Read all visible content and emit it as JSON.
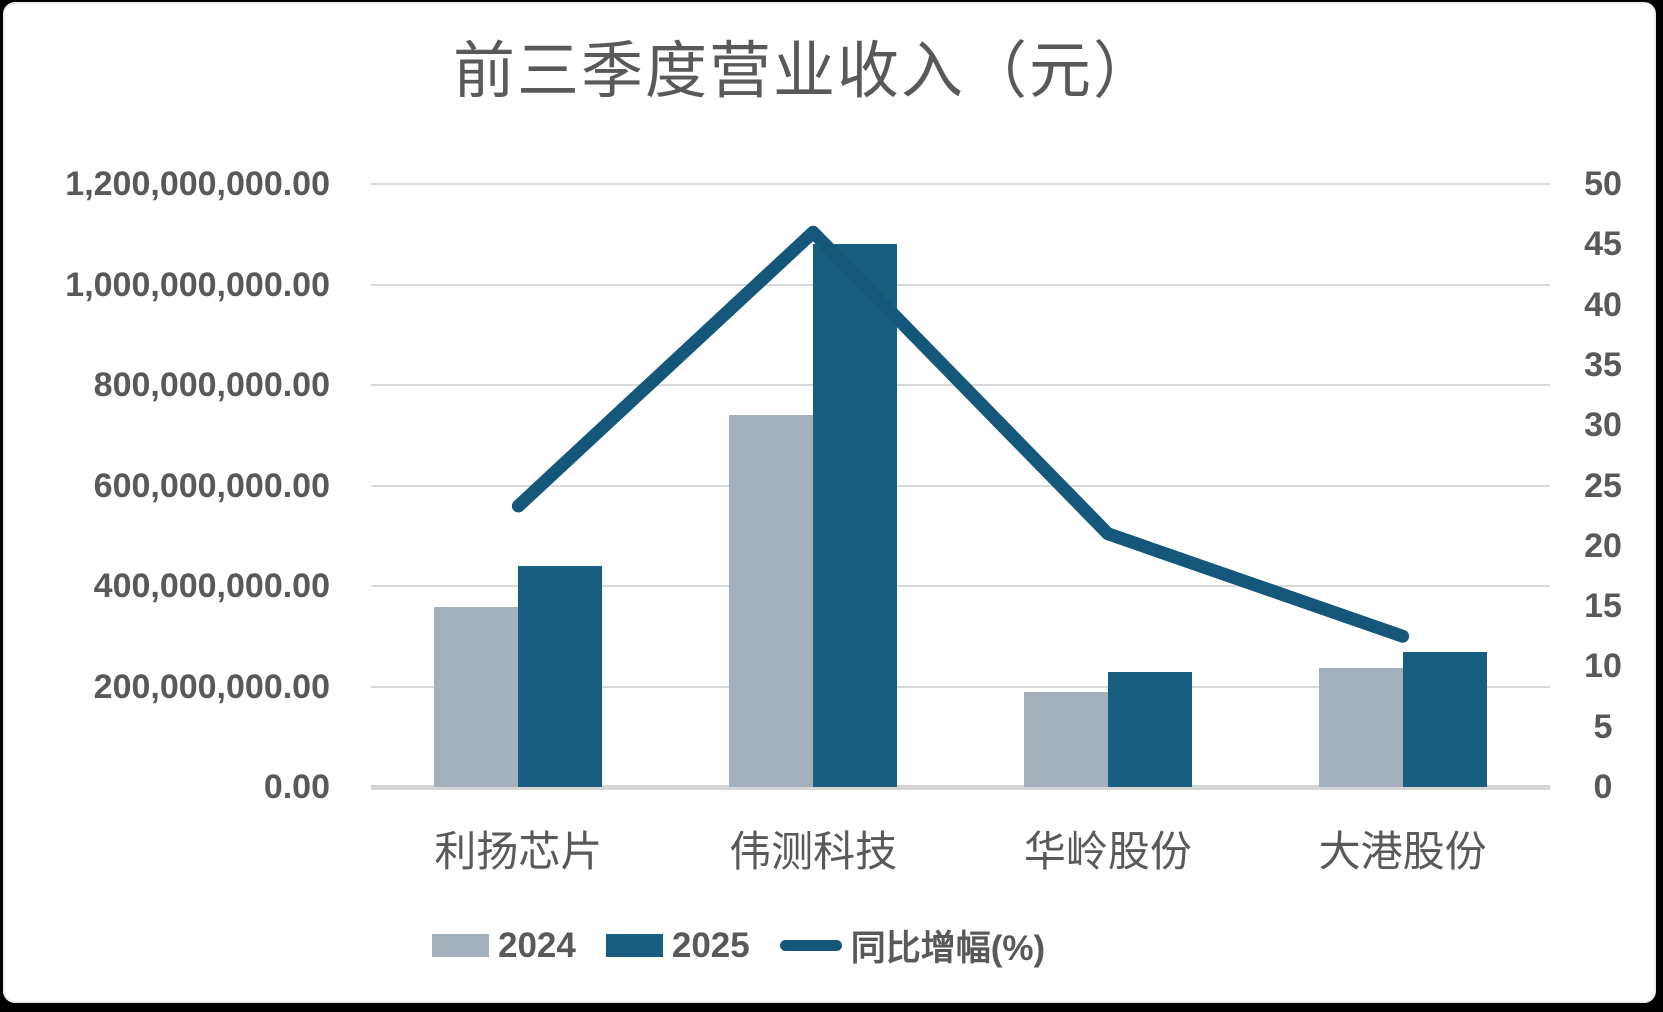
{
  "colors": {
    "bar_2024": "#a4b1bc",
    "bar_2025": "#175e80",
    "line": "#14577a",
    "grid": "#d9d9d9",
    "text": "#595959",
    "card_background": "#ffffff",
    "frame": "#000000"
  },
  "chart_data": {
    "type": "bar",
    "subtype": "grouped bars with overlay line on secondary axis",
    "title": "前三季度营业收入（元）",
    "categories": [
      "利扬芯片",
      "伟测科技",
      "华岭股份",
      "大港股份"
    ],
    "series": [
      {
        "name": "2024",
        "type": "bar",
        "axis": "left",
        "values": [
          358000000,
          740000000,
          190000000,
          236000000
        ]
      },
      {
        "name": "2025",
        "type": "bar",
        "axis": "left",
        "values": [
          440000000,
          1080000000,
          228000000,
          268000000
        ]
      },
      {
        "name": "同比增幅(%)",
        "type": "line",
        "axis": "right",
        "values": [
          23.3,
          46.0,
          21.0,
          12.5
        ]
      }
    ],
    "left_axis": {
      "min": 0,
      "max": 1200000000,
      "step": 200000000,
      "ticks": [
        {
          "value": 0,
          "label": "0.00"
        },
        {
          "value": 200000000,
          "label": "200,000,000.00"
        },
        {
          "value": 400000000,
          "label": "400,000,000.00"
        },
        {
          "value": 600000000,
          "label": "600,000,000.00"
        },
        {
          "value": 800000000,
          "label": "800,000,000.00"
        },
        {
          "value": 1000000000,
          "label": "1,000,000,000.00"
        },
        {
          "value": 1200000000,
          "label": "1,200,000,000.00"
        }
      ]
    },
    "right_axis": {
      "min": 0,
      "max": 50,
      "step": 5,
      "ticks": [
        {
          "value": 0,
          "label": "0"
        },
        {
          "value": 5,
          "label": "5"
        },
        {
          "value": 10,
          "label": "10"
        },
        {
          "value": 15,
          "label": "15"
        },
        {
          "value": 20,
          "label": "20"
        },
        {
          "value": 25,
          "label": "25"
        },
        {
          "value": 30,
          "label": "30"
        },
        {
          "value": 35,
          "label": "35"
        },
        {
          "value": 40,
          "label": "40"
        },
        {
          "value": 45,
          "label": "45"
        },
        {
          "value": 50,
          "label": "50"
        }
      ]
    },
    "grid": true,
    "legend_position": "bottom",
    "legend": [
      "2024",
      "2025",
      "同比增幅(%)"
    ]
  }
}
